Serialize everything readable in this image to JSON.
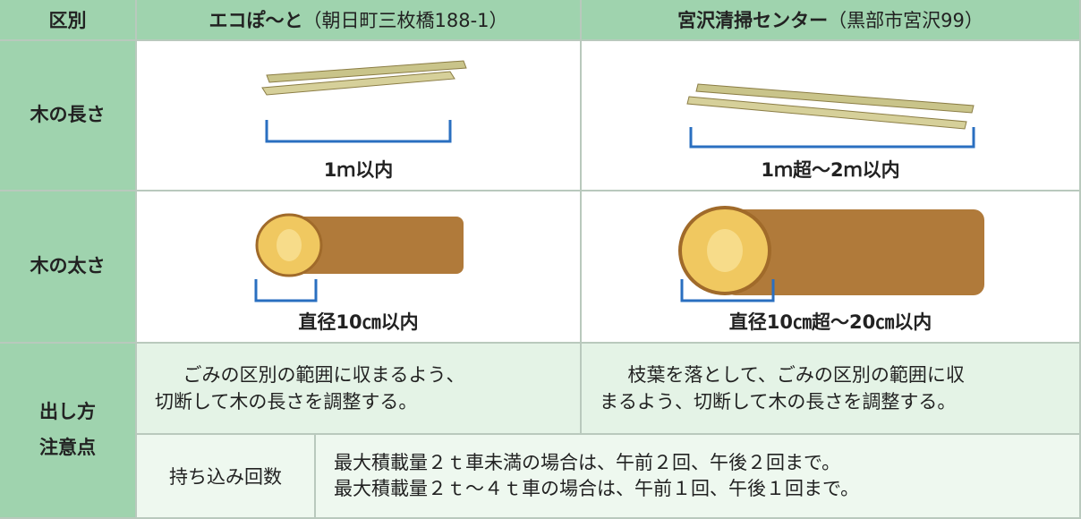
{
  "header": {
    "category": "区別",
    "site1": {
      "name": "エコぽ〜と",
      "address": "（朝日町三枚橋188-1）"
    },
    "site2": {
      "name": "宮沢清掃センター",
      "address": "（黒部市宮沢99）"
    }
  },
  "rows": [
    {
      "label": "木の長さ",
      "site1": "1ｍ以内",
      "site2": "1ｍ超〜2ｍ以内"
    },
    {
      "label": "木の太さ",
      "site1": "直径10㎝以内",
      "site2": "直径10㎝超〜20㎝以内"
    },
    {
      "label": [
        "出し方",
        "注意点"
      ],
      "site1": [
        "ごみの区別の範囲に収まるよう、",
        "切断して木の長さを調整する。"
      ],
      "site2": [
        "枝葉を落として、ごみの区別の範囲に収",
        "まるよう、切断して木の長さを調整する。"
      ]
    }
  ],
  "visits": {
    "label": "持ち込み回数",
    "lines": [
      "最大積載量２ｔ車未満の場合は、午前２回、午後２回まで。",
      "最大積載量２ｔ〜４ｔ車の場合は、午前１回、午後１回まで。"
    ]
  }
}
